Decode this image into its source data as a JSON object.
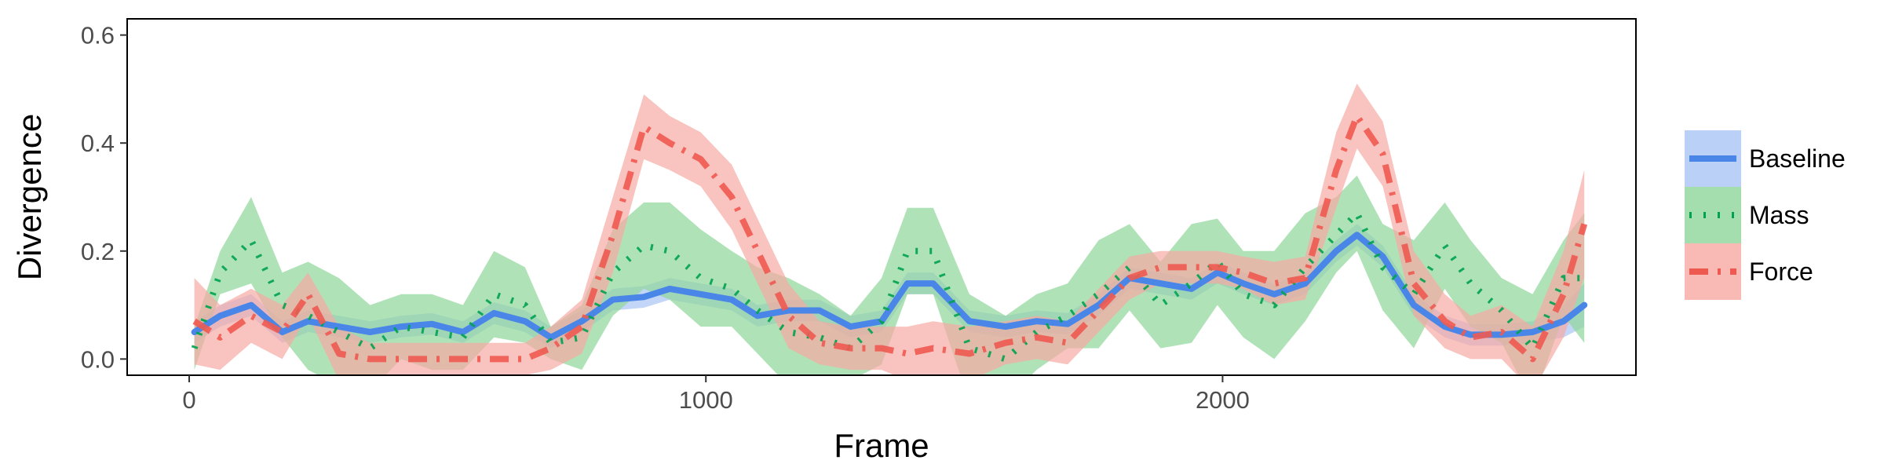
{
  "chart_data": {
    "type": "line",
    "xlabel": "Frame",
    "ylabel": "Divergence",
    "xlim": [
      -120,
      2800
    ],
    "ylim": [
      -0.03,
      0.63
    ],
    "xticks": [
      0,
      1000,
      2000
    ],
    "xtick_labels": [
      "0",
      "1000",
      "2000"
    ],
    "yticks": [
      0.0,
      0.2,
      0.4,
      0.6
    ],
    "ytick_labels": [
      "0.0",
      "0.2",
      "0.4",
      "0.6"
    ],
    "grid": false,
    "legend_position": "right",
    "x": [
      10,
      60,
      120,
      180,
      230,
      290,
      350,
      410,
      470,
      530,
      590,
      650,
      700,
      760,
      820,
      880,
      930,
      990,
      1050,
      1100,
      1160,
      1220,
      1280,
      1340,
      1390,
      1440,
      1510,
      1580,
      1640,
      1700,
      1760,
      1820,
      1880,
      1940,
      1990,
      2040,
      2100,
      2160,
      2220,
      2260,
      2310,
      2370,
      2430,
      2480,
      2540,
      2600,
      2660,
      2700
    ],
    "series": [
      {
        "name": "Baseline",
        "color": "#4A86E8",
        "band_color": "#A9C4F5",
        "dash": "solid",
        "values": [
          0.05,
          0.08,
          0.1,
          0.05,
          0.07,
          0.06,
          0.05,
          0.06,
          0.065,
          0.05,
          0.085,
          0.07,
          0.04,
          0.07,
          0.11,
          0.115,
          0.13,
          0.12,
          0.11,
          0.08,
          0.09,
          0.09,
          0.06,
          0.07,
          0.14,
          0.14,
          0.07,
          0.06,
          0.07,
          0.065,
          0.1,
          0.15,
          0.14,
          0.13,
          0.16,
          0.14,
          0.12,
          0.14,
          0.2,
          0.23,
          0.19,
          0.1,
          0.06,
          0.045,
          0.045,
          0.05,
          0.07,
          0.1
        ],
        "upper": [
          0.07,
          0.1,
          0.12,
          0.07,
          0.09,
          0.08,
          0.07,
          0.08,
          0.085,
          0.07,
          0.105,
          0.09,
          0.06,
          0.09,
          0.13,
          0.135,
          0.15,
          0.14,
          0.13,
          0.1,
          0.11,
          0.11,
          0.08,
          0.09,
          0.16,
          0.16,
          0.09,
          0.08,
          0.09,
          0.085,
          0.12,
          0.17,
          0.16,
          0.15,
          0.18,
          0.16,
          0.14,
          0.16,
          0.22,
          0.25,
          0.21,
          0.12,
          0.08,
          0.065,
          0.065,
          0.07,
          0.1,
          0.14
        ],
        "lower": [
          0.03,
          0.06,
          0.08,
          0.03,
          0.05,
          0.04,
          0.03,
          0.04,
          0.045,
          0.03,
          0.065,
          0.05,
          0.02,
          0.05,
          0.09,
          0.095,
          0.11,
          0.1,
          0.09,
          0.06,
          0.07,
          0.07,
          0.04,
          0.05,
          0.12,
          0.12,
          0.05,
          0.04,
          0.05,
          0.045,
          0.08,
          0.13,
          0.12,
          0.11,
          0.14,
          0.12,
          0.1,
          0.12,
          0.18,
          0.21,
          0.17,
          0.08,
          0.04,
          0.025,
          0.025,
          0.03,
          0.04,
          0.06
        ]
      },
      {
        "name": "Mass",
        "color": "#00A34F",
        "band_color": "#8FD69A",
        "dash": "dotted",
        "values": [
          0.02,
          0.16,
          0.22,
          0.1,
          0.08,
          0.05,
          0.02,
          0.06,
          0.05,
          0.04,
          0.12,
          0.1,
          0.03,
          0.04,
          0.16,
          0.21,
          0.2,
          0.15,
          0.13,
          0.09,
          0.05,
          0.04,
          0.02,
          0.07,
          0.2,
          0.2,
          0.02,
          0.0,
          0.05,
          0.08,
          0.12,
          0.17,
          0.1,
          0.14,
          0.18,
          0.12,
          0.1,
          0.17,
          0.23,
          0.27,
          0.17,
          0.12,
          0.21,
          0.14,
          0.09,
          0.02,
          0.15,
          0.15
        ],
        "upper": [
          0.06,
          0.2,
          0.3,
          0.16,
          0.18,
          0.15,
          0.1,
          0.12,
          0.12,
          0.1,
          0.2,
          0.17,
          0.06,
          0.1,
          0.24,
          0.29,
          0.29,
          0.24,
          0.2,
          0.17,
          0.15,
          0.12,
          0.08,
          0.15,
          0.28,
          0.28,
          0.12,
          0.08,
          0.12,
          0.14,
          0.22,
          0.25,
          0.18,
          0.25,
          0.26,
          0.2,
          0.2,
          0.27,
          0.3,
          0.34,
          0.25,
          0.22,
          0.29,
          0.22,
          0.15,
          0.12,
          0.22,
          0.27
        ],
        "lower": [
          -0.02,
          0.12,
          0.14,
          0.04,
          -0.02,
          -0.05,
          -0.06,
          0.0,
          -0.02,
          -0.02,
          0.04,
          0.03,
          0.0,
          -0.02,
          0.08,
          0.13,
          0.11,
          0.06,
          0.06,
          0.01,
          -0.05,
          -0.04,
          -0.04,
          -0.01,
          0.12,
          0.12,
          -0.08,
          -0.08,
          -0.02,
          0.02,
          0.02,
          0.09,
          0.02,
          0.03,
          0.1,
          0.04,
          0.0,
          0.07,
          0.16,
          0.2,
          0.09,
          0.02,
          0.13,
          0.06,
          0.03,
          -0.08,
          0.08,
          0.03
        ]
      },
      {
        "name": "Force",
        "color": "#EF5A50",
        "band_color": "#F7A9A4",
        "dash": "dashdot",
        "values": [
          0.07,
          0.04,
          0.08,
          0.05,
          0.12,
          0.01,
          0.0,
          0.0,
          0.0,
          0.0,
          0.0,
          0.0,
          0.02,
          0.06,
          0.23,
          0.43,
          0.4,
          0.37,
          0.3,
          0.2,
          0.08,
          0.03,
          0.02,
          0.02,
          0.01,
          0.02,
          0.01,
          0.03,
          0.04,
          0.03,
          0.09,
          0.15,
          0.17,
          0.17,
          0.17,
          0.16,
          0.14,
          0.15,
          0.35,
          0.45,
          0.38,
          0.14,
          0.07,
          0.04,
          0.05,
          0.0,
          0.12,
          0.25
        ],
        "upper": [
          0.15,
          0.1,
          0.13,
          0.1,
          0.16,
          0.06,
          0.03,
          0.03,
          0.03,
          0.03,
          0.03,
          0.03,
          0.06,
          0.11,
          0.3,
          0.49,
          0.45,
          0.42,
          0.36,
          0.26,
          0.14,
          0.07,
          0.06,
          0.06,
          0.06,
          0.07,
          0.06,
          0.07,
          0.08,
          0.07,
          0.13,
          0.19,
          0.2,
          0.2,
          0.2,
          0.19,
          0.18,
          0.19,
          0.42,
          0.51,
          0.44,
          0.2,
          0.12,
          0.08,
          0.1,
          0.06,
          0.2,
          0.35
        ],
        "lower": [
          -0.01,
          -0.02,
          0.03,
          0.0,
          0.08,
          -0.04,
          -0.03,
          -0.03,
          -0.03,
          -0.03,
          -0.03,
          -0.03,
          -0.02,
          0.01,
          0.16,
          0.37,
          0.35,
          0.32,
          0.24,
          0.14,
          0.02,
          -0.01,
          -0.02,
          -0.02,
          -0.04,
          -0.03,
          -0.04,
          -0.01,
          0.0,
          -0.01,
          0.05,
          0.11,
          0.14,
          0.14,
          0.14,
          0.13,
          0.1,
          0.11,
          0.28,
          0.39,
          0.32,
          0.08,
          0.02,
          0.0,
          0.0,
          -0.06,
          0.04,
          0.15
        ]
      }
    ]
  }
}
